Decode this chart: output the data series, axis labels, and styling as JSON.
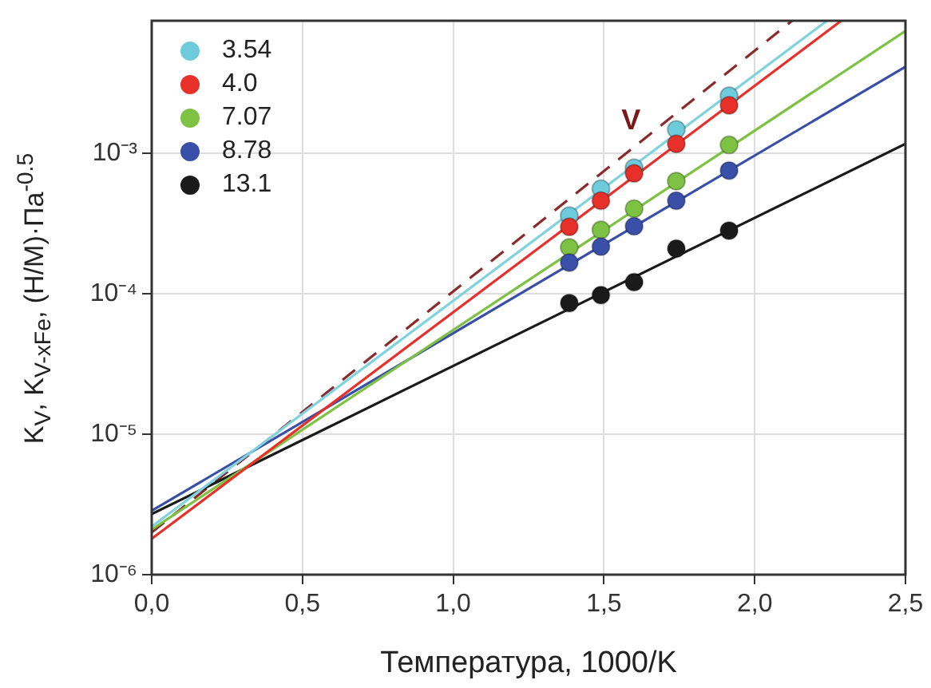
{
  "chart_data": {
    "type": "scatter",
    "xlabel": "Температура, 1000/K",
    "ylabel": "K$_{V}$, K$_{V-xFe}$,  (Н/М)·Па$^{-0.5}$",
    "log": "y",
    "grid": true,
    "legend": "top left",
    "marker": "circle",
    "xlim": [
      0,
      2.5
    ],
    "xticks": [
      {
        "value": 0,
        "label": "0,0"
      },
      {
        "value": 0.5,
        "label": "0,5"
      },
      {
        "value": 1,
        "label": "1,0"
      },
      {
        "value": 1.5,
        "label": "1,5"
      },
      {
        "value": 2,
        "label": "2,0"
      },
      {
        "value": 2.5,
        "label": "2,5"
      }
    ],
    "ylim": [
      1e-06,
      0.0088
    ],
    "yticks": [
      {
        "value": 1e-06,
        "label": "10⁻⁶"
      },
      {
        "value": 1e-05,
        "label": "10⁻⁵"
      },
      {
        "value": 0.0001,
        "label": "10⁻⁴"
      },
      {
        "value": 0.001,
        "label": "10⁻³"
      }
    ],
    "annotations": [
      {
        "text": "V",
        "x": 1.6,
        "y": 0.00111
      }
    ],
    "series": [
      {
        "name": "3.54",
        "color": "#6ecbdc",
        "x": [
          1.385,
          1.49,
          1.6,
          1.74,
          1.915
        ],
        "values": [
          0.00036,
          0.00056,
          0.00079,
          0.00148,
          0.00257
        ]
      },
      {
        "name": "4.0",
        "color": "#e8302a",
        "x": [
          1.385,
          1.49,
          1.6,
          1.74,
          1.915
        ],
        "values": [
          0.0003,
          0.00046,
          0.00072,
          0.00117,
          0.0022
        ]
      },
      {
        "name": "7.07",
        "color": "#7dc242",
        "x": [
          1.385,
          1.49,
          1.6,
          1.74,
          1.915
        ],
        "values": [
          0.000214,
          0.000285,
          0.000404,
          0.000635,
          0.00115
        ]
      },
      {
        "name": "8.78",
        "color": "#3a4fa8",
        "x": [
          1.385,
          1.49,
          1.6,
          1.74,
          1.915
        ],
        "values": [
          0.000167,
          0.000217,
          0.000303,
          0.00046,
          0.000755
        ]
      },
      {
        "name": "13.1",
        "color": "#1a1a1a",
        "x": [
          1.385,
          1.49,
          1.6,
          1.74,
          1.915
        ],
        "values": [
          8.6e-05,
          9.8e-05,
          0.000121,
          0.00021,
          0.000282
        ]
      },
      {
        "type": "line",
        "color": "#7fd3e0",
        "marker": "none",
        "x": [
          0,
          2.24
        ],
        "values": [
          2.2e-06,
          0.0088
        ]
      },
      {
        "type": "line",
        "color": "#e8302a",
        "marker": "none",
        "x": [
          0,
          2.287
        ],
        "values": [
          1.8e-06,
          0.0088
        ]
      },
      {
        "type": "line",
        "color": "#7dc242",
        "marker": "none",
        "x": [
          0,
          2.5
        ],
        "values": [
          2.1e-06,
          0.00745
        ]
      },
      {
        "type": "line",
        "color": "#3a4fa8",
        "marker": "none",
        "x": [
          0,
          2.5
        ],
        "values": [
          2.85e-06,
          0.00414
        ]
      },
      {
        "type": "line",
        "color": "#1a1a1a",
        "marker": "none",
        "x": [
          0,
          2.5
        ],
        "values": [
          2.7e-06,
          0.00117
        ]
      },
      {
        "type": "line",
        "color": "#8b2a2a",
        "marker": "none",
        "line_style": "dashed",
        "x": [
          0,
          2.124
        ],
        "values": [
          2e-06,
          0.0088
        ]
      }
    ]
  }
}
